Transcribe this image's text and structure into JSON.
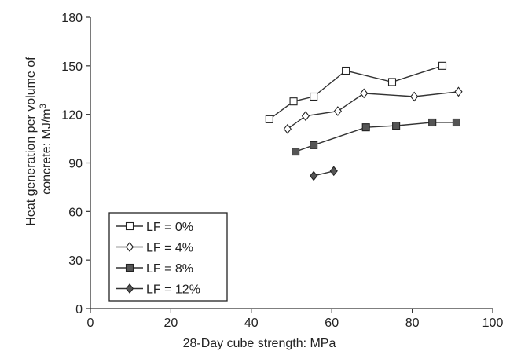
{
  "chart_data": {
    "type": "line",
    "xlabel": "28-Day cube strength: MPa",
    "ylabel_line1": "Heat generation per volume of",
    "ylabel_line2": "concrete: MJ/m",
    "ylabel_sup": "3",
    "xlim": [
      0,
      100
    ],
    "ylim": [
      0,
      180
    ],
    "xticks": [
      0,
      20,
      40,
      60,
      80,
      100
    ],
    "yticks": [
      0,
      30,
      60,
      90,
      120,
      150,
      180
    ],
    "grid": false,
    "legend_position": "bottom-left",
    "series": [
      {
        "name": "LF = 0%",
        "marker": "open-square",
        "points": [
          [
            44.5,
            117
          ],
          [
            50.5,
            128
          ],
          [
            55.5,
            131
          ],
          [
            63.5,
            147
          ],
          [
            75,
            140
          ],
          [
            87.5,
            150
          ]
        ]
      },
      {
        "name": "LF = 4%",
        "marker": "open-diamond",
        "points": [
          [
            49,
            111
          ],
          [
            53.5,
            119
          ],
          [
            61.5,
            122
          ],
          [
            68,
            133
          ],
          [
            80.5,
            131
          ],
          [
            91.5,
            134
          ]
        ]
      },
      {
        "name": "LF = 8%",
        "marker": "filled-square",
        "points": [
          [
            51,
            97
          ],
          [
            55.5,
            101
          ],
          [
            68.5,
            112
          ],
          [
            76,
            113
          ],
          [
            85,
            115
          ],
          [
            91,
            115
          ]
        ]
      },
      {
        "name": "LF = 12%",
        "marker": "filled-diamond",
        "points": [
          [
            55.5,
            82
          ],
          [
            60.5,
            85
          ]
        ]
      }
    ]
  }
}
